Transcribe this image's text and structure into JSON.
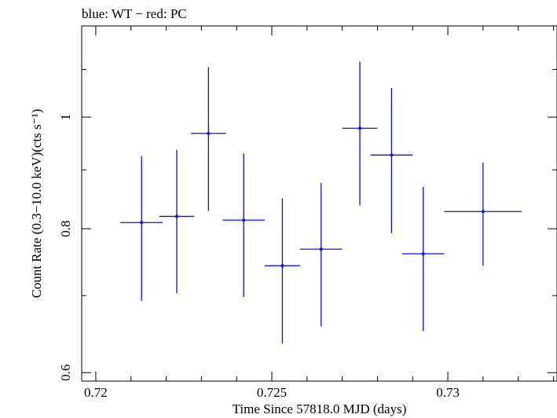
{
  "chart_data": {
    "type": "scatter",
    "title": "blue: WT − red: PC",
    "xlabel": "Time Since 57818.0 MJD (days)",
    "ylabel": "Count Rate (0.3−10.0 keV)(cts s⁻¹)",
    "xlim": [
      0.7196,
      0.7331
    ],
    "ylim": [
      0.59,
      1.2
    ],
    "y_scale": "log",
    "x_ticks": [
      0.72,
      0.725,
      0.73
    ],
    "x_tick_labels": [
      "0.72",
      "0.725",
      "0.73"
    ],
    "y_ticks": [
      0.6,
      0.8,
      1.0
    ],
    "y_tick_labels": [
      "0.6",
      "0.8",
      "1"
    ],
    "grid": false,
    "series": [
      {
        "color": "#1010dd",
        "points": [
          {
            "x": 0.7213,
            "y": 0.81,
            "xerr": 0.0006,
            "ylo": 0.693,
            "yhi": 0.925
          },
          {
            "x": 0.7223,
            "y": 0.82,
            "xerr": 0.0005,
            "ylo": 0.703,
            "yhi": 0.937
          },
          {
            "x": 0.7232,
            "y": 0.968,
            "xerr": 0.0005,
            "ylo": 0.829,
            "yhi": 1.105
          },
          {
            "x": 0.7242,
            "y": 0.814,
            "xerr": 0.0006,
            "ylo": 0.698,
            "yhi": 0.93
          },
          {
            "x": 0.7253,
            "y": 0.743,
            "xerr": 0.0005,
            "ylo": 0.636,
            "yhi": 0.85
          },
          {
            "x": 0.7264,
            "y": 0.768,
            "xerr": 0.0006,
            "ylo": 0.658,
            "yhi": 0.877
          },
          {
            "x": 0.7275,
            "y": 0.978,
            "xerr": 0.0005,
            "ylo": 0.838,
            "yhi": 1.117
          },
          {
            "x": 0.7284,
            "y": 0.927,
            "xerr": 0.0006,
            "ylo": 0.793,
            "yhi": 1.06
          },
          {
            "x": 0.7293,
            "y": 0.761,
            "xerr": 0.0006,
            "ylo": 0.652,
            "yhi": 0.87
          },
          {
            "x": 0.731,
            "y": 0.828,
            "xerr": 0.0011,
            "ylo": 0.743,
            "yhi": 0.913
          }
        ]
      }
    ]
  }
}
